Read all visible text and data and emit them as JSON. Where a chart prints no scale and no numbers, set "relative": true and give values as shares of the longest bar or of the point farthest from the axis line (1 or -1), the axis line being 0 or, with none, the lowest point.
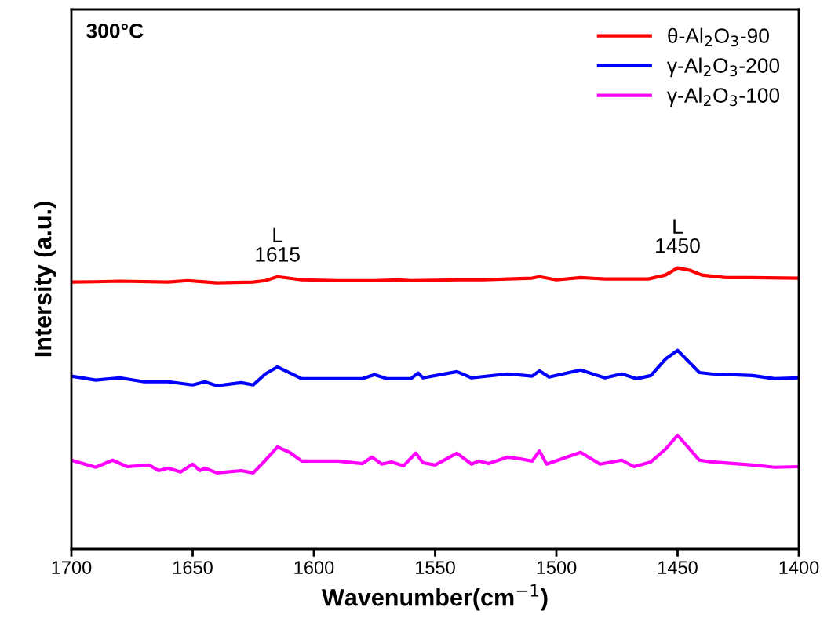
{
  "chart_data": {
    "type": "line",
    "relative": true,
    "xlabel": "Wavenumber(cm$^{−1}$)",
    "ylabel": "Intersity (a.u.)",
    "xlim": [
      1700,
      1400
    ],
    "xticks": [
      1700,
      1650,
      1600,
      1550,
      1500,
      1450,
      1400
    ],
    "tick_labels": "x",
    "legend": "top right",
    "grid": false,
    "annotations": [
      "300°C",
      {
        "text": "L\n1615",
        "x": 1615,
        "y": 0.969
      },
      {
        "text": "L\n1450",
        "x": 1450,
        "y": 1.0
      }
    ],
    "series": [
      {
        "name": "θ-Al$_{2}$O$_{3}$-90",
        "color": "#ff0000",
        "x": [
          1700,
          1690,
          1680,
          1660,
          1652,
          1640,
          1625,
          1620,
          1615,
          1605,
          1590,
          1575,
          1565,
          1560,
          1540,
          1530,
          1520,
          1510,
          1507,
          1500,
          1490,
          1480,
          1470,
          1462,
          1455,
          1450,
          1445,
          1440,
          1430,
          1420,
          1400
        ],
        "values": [
          0.95,
          0.951,
          0.953,
          0.95,
          0.955,
          0.947,
          0.95,
          0.955,
          0.969,
          0.958,
          0.955,
          0.955,
          0.958,
          0.955,
          0.958,
          0.958,
          0.961,
          0.964,
          0.969,
          0.958,
          0.966,
          0.961,
          0.961,
          0.961,
          0.975,
          1.0,
          0.992,
          0.975,
          0.966,
          0.966,
          0.964
        ]
      },
      {
        "name": "γ-Al$_{2}$O$_{3}$-200",
        "color": "#0000ff",
        "x": [
          1700,
          1690,
          1680,
          1670,
          1660,
          1650,
          1645,
          1640,
          1630,
          1625,
          1620,
          1615,
          1605,
          1590,
          1580,
          1575,
          1570,
          1560,
          1557,
          1555,
          1541,
          1535,
          1520,
          1510,
          1507,
          1503,
          1490,
          1480,
          1473,
          1467,
          1461,
          1455,
          1450,
          1441,
          1436,
          1419,
          1410,
          1400
        ],
        "values": [
          0.615,
          0.601,
          0.609,
          0.595,
          0.595,
          0.584,
          0.595,
          0.581,
          0.592,
          0.584,
          0.623,
          0.648,
          0.606,
          0.606,
          0.606,
          0.62,
          0.606,
          0.606,
          0.626,
          0.609,
          0.631,
          0.609,
          0.623,
          0.615,
          0.634,
          0.612,
          0.637,
          0.609,
          0.623,
          0.606,
          0.617,
          0.676,
          0.707,
          0.628,
          0.623,
          0.617,
          0.606,
          0.609
        ]
      },
      {
        "name": "γ-Al$_{2}$O$_{3}$-100",
        "color": "#ff00ff",
        "x": [
          1700,
          1690,
          1683,
          1677,
          1668,
          1664,
          1660,
          1655,
          1650,
          1647,
          1645,
          1640,
          1630,
          1625,
          1620,
          1615,
          1610,
          1605,
          1590,
          1580,
          1576,
          1572,
          1568,
          1563,
          1558,
          1555,
          1550,
          1541,
          1535,
          1532,
          1528,
          1520,
          1515,
          1510,
          1507,
          1504,
          1490,
          1482,
          1473,
          1468,
          1461,
          1455,
          1450,
          1441,
          1436,
          1419,
          1410,
          1400
        ],
        "values": [
          0.316,
          0.291,
          0.316,
          0.293,
          0.299,
          0.279,
          0.288,
          0.274,
          0.302,
          0.279,
          0.288,
          0.271,
          0.279,
          0.271,
          0.316,
          0.363,
          0.344,
          0.313,
          0.313,
          0.304,
          0.327,
          0.302,
          0.31,
          0.296,
          0.341,
          0.307,
          0.299,
          0.341,
          0.302,
          0.313,
          0.304,
          0.327,
          0.321,
          0.313,
          0.349,
          0.302,
          0.344,
          0.302,
          0.316,
          0.293,
          0.31,
          0.355,
          0.405,
          0.316,
          0.31,
          0.299,
          0.291,
          0.293
        ]
      }
    ]
  }
}
